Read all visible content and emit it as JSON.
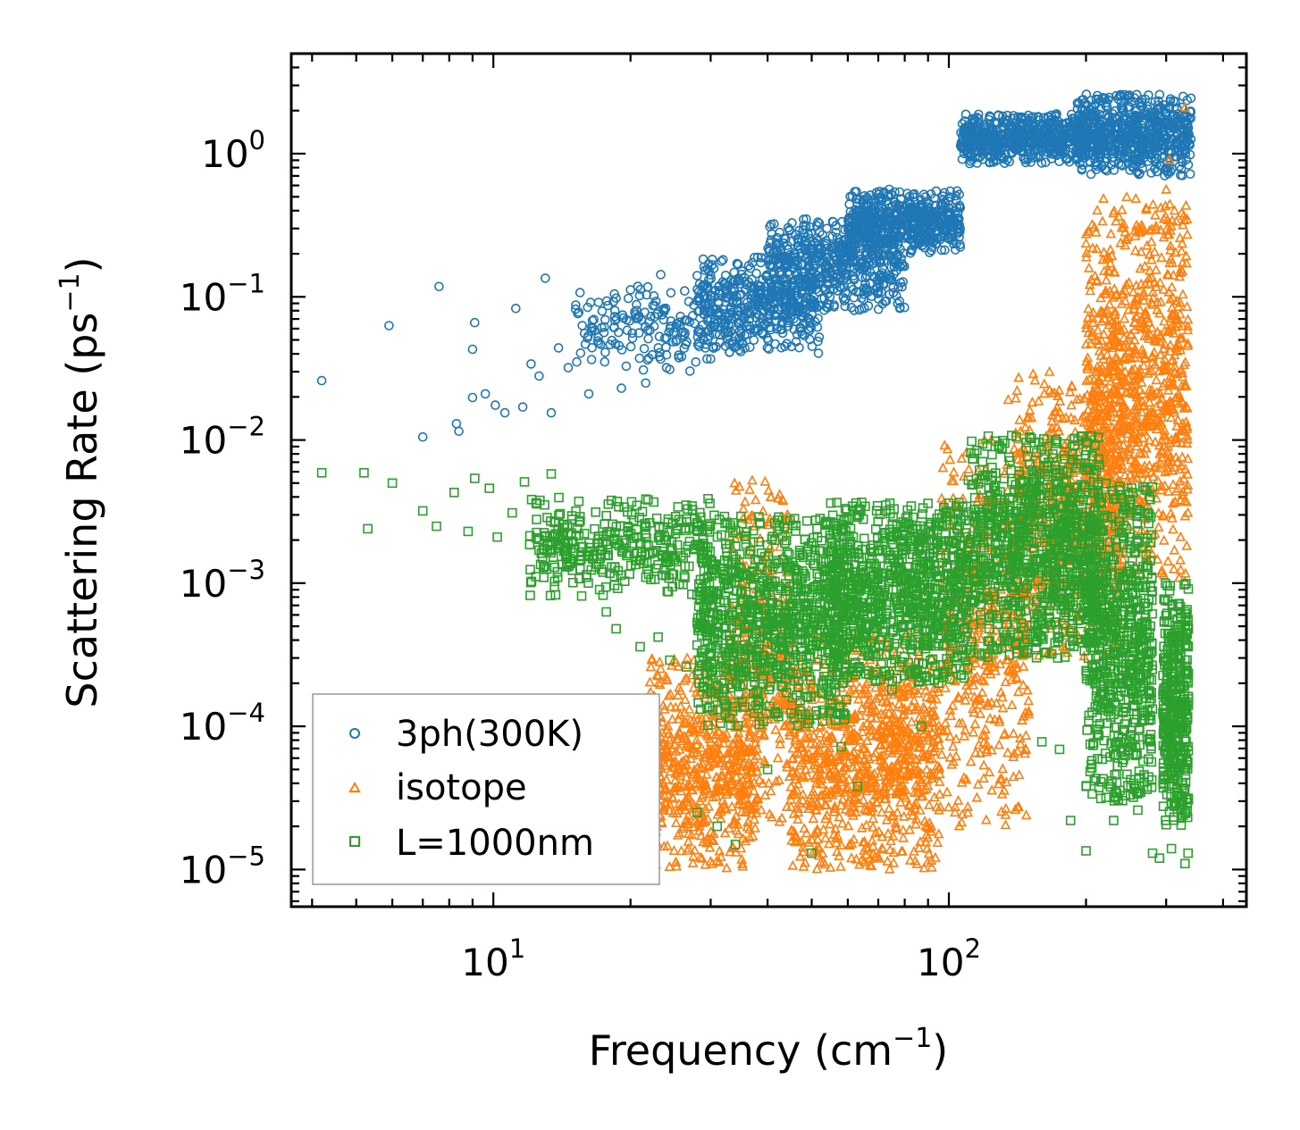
{
  "chart_data": {
    "type": "scatter",
    "xscale": "log",
    "yscale": "log",
    "xlim": [
      3.6,
      450
    ],
    "ylim": [
      5.5e-06,
      5
    ],
    "xlabel": "Frequency (cm",
    "xlabel_exp": "−1",
    "xlabel_close": ")",
    "ylabel": "Scattering Rate (ps",
    "ylabel_exp": "−1",
    "ylabel_close": ")",
    "x_ticks": [
      {
        "value": 10,
        "base": "10",
        "exp": "1"
      },
      {
        "value": 100,
        "base": "10",
        "exp": "2"
      }
    ],
    "y_ticks": [
      {
        "value": 1,
        "base": "10",
        "exp": "0"
      },
      {
        "value": 0.1,
        "base": "10",
        "exp": "−1"
      },
      {
        "value": 0.01,
        "base": "10",
        "exp": "−2"
      },
      {
        "value": 0.001,
        "base": "10",
        "exp": "−3"
      },
      {
        "value": 0.0001,
        "base": "10",
        "exp": "−4"
      },
      {
        "value": 1e-05,
        "base": "10",
        "exp": "−5"
      }
    ],
    "legend_position": "lower-left",
    "series": [
      {
        "name": "3ph(300K)",
        "marker": "circle",
        "color": "#1f77b4",
        "points": [
          [
            4.2,
            0.026
          ],
          [
            5.9,
            0.063
          ],
          [
            7.0,
            0.0105
          ],
          [
            7.6,
            0.118
          ],
          [
            8.4,
            0.0115
          ],
          [
            8.3,
            0.013
          ],
          [
            9.0,
            0.043
          ],
          [
            9.1,
            0.066
          ],
          [
            9.0,
            0.0198
          ],
          [
            9.6,
            0.021
          ],
          [
            10.1,
            0.0175
          ],
          [
            10.6,
            0.0155
          ],
          [
            11.2,
            0.083
          ],
          [
            11.6,
            0.017
          ],
          [
            12.1,
            0.034
          ],
          [
            12.6,
            0.028
          ],
          [
            13.0,
            0.135
          ],
          [
            13.4,
            0.0155
          ],
          [
            13.9,
            0.044
          ],
          [
            14.6,
            0.032
          ],
          [
            15.4,
            0.078
          ],
          [
            16.2,
            0.021
          ],
          [
            17.0,
            0.052
          ],
          [
            17.6,
            0.041
          ],
          [
            18.4,
            0.061
          ],
          [
            19.1,
            0.023
          ],
          [
            20.0,
            0.112
          ],
          [
            20.8,
            0.071
          ],
          [
            21.6,
            0.025
          ],
          [
            22.4,
            0.087
          ],
          [
            23.3,
            0.143
          ],
          [
            24.0,
            0.032
          ],
          [
            25.2,
            0.061
          ],
          [
            26.3,
            0.11
          ],
          [
            27.4,
            0.074
          ],
          [
            28.3,
            0.045
          ],
          [
            29.6,
            0.058
          ],
          [
            30.9,
            0.082
          ],
          [
            32.2,
            0.066
          ],
          [
            33.6,
            0.093
          ],
          [
            35.0,
            0.104
          ],
          [
            36.3,
            0.079
          ],
          [
            37.6,
            0.088
          ],
          [
            39.0,
            0.132
          ],
          [
            40.2,
            0.18
          ],
          [
            42.0,
            0.205
          ],
          [
            43.5,
            0.162
          ],
          [
            45.0,
            0.188
          ],
          [
            46.6,
            0.227
          ],
          [
            48.2,
            0.151
          ],
          [
            50.0,
            0.186
          ],
          [
            52.0,
            0.214
          ],
          [
            54.0,
            0.168
          ],
          [
            56.0,
            0.19
          ],
          [
            58.0,
            0.137
          ],
          [
            60.0,
            0.201
          ],
          [
            62.5,
            0.26
          ],
          [
            65.0,
            0.302
          ],
          [
            67.0,
            0.278
          ],
          [
            69.5,
            0.332
          ],
          [
            72.0,
            0.405
          ],
          [
            74.0,
            0.563
          ],
          [
            76.5,
            0.44
          ],
          [
            79.0,
            0.352
          ],
          [
            81.5,
            0.375
          ],
          [
            84.0,
            0.321
          ],
          [
            86.5,
            0.392
          ],
          [
            89.0,
            0.358
          ],
          [
            92.0,
            0.312
          ],
          [
            95.0,
            0.4
          ],
          [
            98.0,
            0.46
          ],
          [
            101.0,
            0.381
          ],
          [
            104.0,
            0.42
          ]
        ],
        "bands": [
          {
            "x": [
              15,
              33
            ],
            "y_min": 0.03,
            "y_max": 0.12,
            "count": 160
          },
          {
            "x": [
              28,
              52
            ],
            "y_min": 0.04,
            "y_max": 0.2,
            "count": 420
          },
          {
            "x": [
              40,
              80
            ],
            "y_min": 0.08,
            "y_max": 0.35,
            "count": 520
          },
          {
            "x": [
              60,
              106
            ],
            "y_min": 0.2,
            "y_max": 0.55,
            "count": 520
          },
          {
            "x": [
              106,
              200
            ],
            "y_min": 0.85,
            "y_max": 1.9,
            "count": 550
          },
          {
            "x": [
              190,
              340
            ],
            "y_min": 0.7,
            "y_max": 2.6,
            "count": 650
          }
        ]
      },
      {
        "name": "isotope",
        "marker": "triangle",
        "color": "#ff7f0e",
        "points": [
          [
            37.0,
            0.0052
          ],
          [
            39.5,
            0.0051
          ],
          [
            57.5,
            0.00048
          ],
          [
            73.0,
            0.00042
          ],
          [
            88.0,
            0.00071
          ],
          [
            108.0,
            0.00048
          ],
          [
            135.0,
            0.019
          ],
          [
            162.0,
            0.021
          ],
          [
            205.0,
            0.047
          ],
          [
            221.0,
            0.11
          ],
          [
            233.0,
            0.068
          ],
          [
            262.0,
            0.28
          ],
          [
            285.0,
            0.31
          ],
          [
            300.0,
            0.56
          ],
          [
            305.0,
            0.9
          ],
          [
            330.0,
            2.1
          ],
          [
            334.0,
            0.0045
          ]
        ],
        "bands": [
          {
            "x": [
              22,
              38
            ],
            "y_min": 1e-05,
            "y_max": 0.0003,
            "count": 600
          },
          {
            "x": [
              33,
              45
            ],
            "y_min": 2e-05,
            "y_max": 0.005,
            "count": 300
          },
          {
            "x": [
              45,
              96
            ],
            "y_min": 1e-05,
            "y_max": 0.00045,
            "count": 900
          },
          {
            "x": [
              96,
              150
            ],
            "y_min": 2e-05,
            "y_max": 0.01,
            "count": 450
          },
          {
            "x": [
              140,
              240
            ],
            "y_min": 0.0003,
            "y_max": 0.03,
            "count": 600
          },
          {
            "x": [
              200,
              335
            ],
            "y_min": 0.001,
            "y_max": 0.5,
            "count": 900
          }
        ]
      },
      {
        "name": "L=1000nm",
        "marker": "square",
        "color": "#2ca02c",
        "points": [
          [
            4.2,
            0.0059
          ],
          [
            5.2,
            0.0059
          ],
          [
            5.3,
            0.0024
          ],
          [
            6.0,
            0.005
          ],
          [
            7.0,
            0.0032
          ],
          [
            7.5,
            0.0025
          ],
          [
            8.2,
            0.0043
          ],
          [
            8.8,
            0.0023
          ],
          [
            9.1,
            0.0054
          ],
          [
            9.8,
            0.0046
          ],
          [
            10.2,
            0.0021
          ],
          [
            11.0,
            0.0031
          ],
          [
            11.7,
            0.0051
          ],
          [
            12.6,
            0.0017
          ],
          [
            13.4,
            0.0058
          ],
          [
            14.5,
            0.0013
          ],
          [
            16.0,
            0.0011
          ],
          [
            17.7,
            0.00063
          ],
          [
            18.6,
            0.00048
          ],
          [
            21.0,
            0.00036
          ],
          [
            23.0,
            0.00042
          ],
          [
            24.4,
            0.00029
          ],
          [
            26.5,
            0.00026
          ],
          [
            28.0,
            2.5e-05
          ],
          [
            31.0,
            2e-05
          ],
          [
            34.0,
            1.5e-05
          ],
          [
            40.0,
            5e-05
          ],
          [
            50.0,
            1.3e-05
          ],
          [
            58.0,
            7.2e-05
          ],
          [
            63.0,
            3.8e-05
          ],
          [
            75.0,
            0.00018
          ],
          [
            87.0,
            0.0001
          ],
          [
            98.0,
            0.00024
          ],
          [
            160.0,
            7.8e-05
          ],
          [
            175.0,
            6.9e-05
          ],
          [
            185.0,
            2.2e-05
          ],
          [
            200.0,
            1.35e-05
          ],
          [
            230.0,
            2.2e-05
          ],
          [
            260.0,
            2.6e-05
          ],
          [
            280.0,
            1.3e-05
          ],
          [
            290.0,
            1.2e-05
          ],
          [
            308.0,
            1.4e-05
          ],
          [
            330.0,
            1.1e-05
          ],
          [
            335.0,
            1.3e-05
          ]
        ],
        "bands": [
          {
            "x": [
              12,
              30
            ],
            "y_min": 0.0008,
            "y_max": 0.004,
            "count": 350
          },
          {
            "x": [
              28,
              60
            ],
            "y_min": 0.0001,
            "y_max": 0.003,
            "count": 900
          },
          {
            "x": [
              55,
              110
            ],
            "y_min": 0.0002,
            "y_max": 0.0037,
            "count": 900
          },
          {
            "x": [
              110,
              215
            ],
            "y_min": 0.0003,
            "y_max": 0.011,
            "count": 900
          },
          {
            "x": [
              200,
              280
            ],
            "y_min": 3e-05,
            "y_max": 0.005,
            "count": 700
          },
          {
            "x": [
              295,
              336
            ],
            "y_min": 2e-05,
            "y_max": 0.001,
            "count": 400
          }
        ]
      }
    ]
  }
}
